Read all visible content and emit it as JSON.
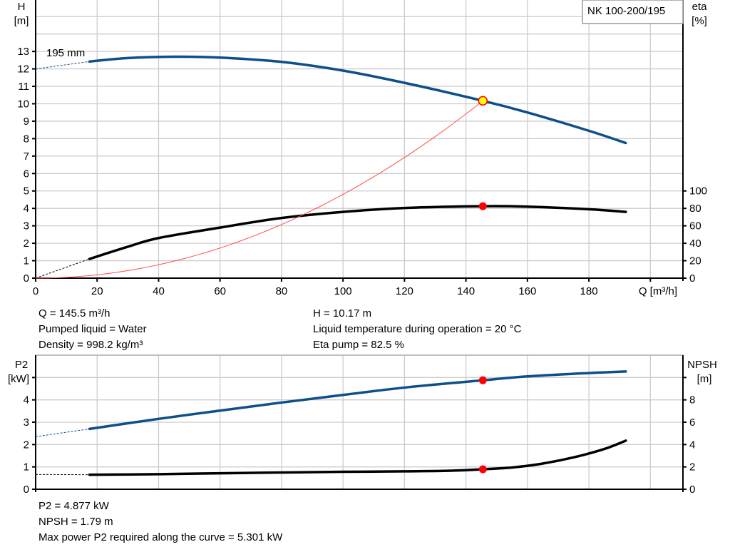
{
  "colors": {
    "head": "#0d4f8b",
    "eta": "#000000",
    "system": "#ff4d4d",
    "point": "#ff0000",
    "duty_fill": "#ffff00",
    "grid": "#cccccc"
  },
  "chart_data": [
    {
      "type": "line",
      "title": "NK 100-200/195",
      "xlabel": "Q [m³/h]",
      "ylabel": "H\n[m]",
      "ylabel_lines": [
        "H",
        "[m]"
      ],
      "y2label_lines": [
        "eta",
        "[%]"
      ],
      "xlim": [
        0,
        210.6
      ],
      "ylim": [
        0,
        15.95
      ],
      "y2lim": [
        0,
        319
      ],
      "xticks": [
        0,
        20,
        40,
        60,
        80,
        100,
        120,
        140,
        160,
        180
      ],
      "yticks": [
        0,
        1,
        2,
        3,
        4,
        5,
        6,
        7,
        8,
        9,
        10,
        11,
        12,
        13
      ],
      "y2ticks": [
        0,
        20,
        40,
        60,
        80,
        100
      ],
      "grid": true,
      "annotation": "195 mm",
      "series": [
        {
          "key": "head",
          "axis": "left",
          "dashed": {
            "x": [
              0,
              17.5
            ],
            "y": [
              12.0,
              12.42
            ]
          },
          "x": [
            17.5,
            30,
            45,
            60,
            80,
            100,
            120,
            145.5,
            160,
            180,
            192
          ],
          "y": [
            12.42,
            12.62,
            12.7,
            12.65,
            12.4,
            11.9,
            11.2,
            10.17,
            9.5,
            8.45,
            7.75
          ]
        },
        {
          "key": "eta",
          "axis": "right",
          "dashed": {
            "x": [
              0,
              17.5
            ],
            "y": [
              0,
              22
            ]
          },
          "x": [
            17.5,
            30,
            40,
            60,
            80,
            100,
            120,
            145.5,
            160,
            180,
            192
          ],
          "y": [
            22,
            36,
            46,
            58,
            69,
            76,
            80.5,
            82.5,
            82,
            79,
            76
          ]
        },
        {
          "key": "system",
          "axis": "left",
          "type": "parabola",
          "x_end": 145.5,
          "y_end": 10.17
        }
      ],
      "duty_point": {
        "Q": 145.5,
        "H": 10.17,
        "eta": 82.5
      }
    },
    {
      "type": "line",
      "ylabel_lines": [
        "P2",
        "[kW]"
      ],
      "y2label_lines": [
        "NPSH",
        "[m]"
      ],
      "xlim": [
        0,
        210.6
      ],
      "ylim": [
        0,
        6
      ],
      "y2lim": [
        0,
        12
      ],
      "yticks": [
        0,
        1,
        2,
        3,
        4
      ],
      "y2ticks": [
        0,
        2,
        4,
        6,
        8
      ],
      "grid": true,
      "series": [
        {
          "key": "p2",
          "axis": "left",
          "dashed": {
            "x": [
              0,
              17.5
            ],
            "y": [
              2.35,
              2.7
            ]
          },
          "x": [
            17.5,
            40,
            60,
            80,
            100,
            120,
            145.5,
            160,
            180,
            192
          ],
          "y": [
            2.7,
            3.15,
            3.52,
            3.88,
            4.22,
            4.55,
            4.877,
            5.05,
            5.2,
            5.27
          ]
        },
        {
          "key": "npsh",
          "axis": "right",
          "dashed": {
            "x": [
              0,
              17.5
            ],
            "y": [
              1.32,
              1.3
            ]
          },
          "x": [
            17.5,
            40,
            60,
            80,
            100,
            120,
            135,
            145.5,
            155,
            165,
            175,
            185,
            192
          ],
          "y": [
            1.3,
            1.35,
            1.43,
            1.5,
            1.56,
            1.6,
            1.66,
            1.79,
            1.95,
            2.3,
            2.85,
            3.6,
            4.35
          ]
        }
      ],
      "duty_point": {
        "Q": 145.5,
        "P2": 4.877,
        "NPSH": 1.79
      }
    }
  ],
  "info_top_left": [
    "Q = 145.5 m³/h",
    "Pumped liquid = Water",
    "Density = 998.2 kg/m³"
  ],
  "info_top_right": [
    "H = 10.17 m",
    "Liquid temperature during operation = 20 °C",
    "Eta pump = 82.5 %"
  ],
  "info_bottom": [
    "P2 = 4.877 kW",
    "NPSH = 1.79 m",
    "Max power P2 required along the curve = 5.301 kW"
  ]
}
